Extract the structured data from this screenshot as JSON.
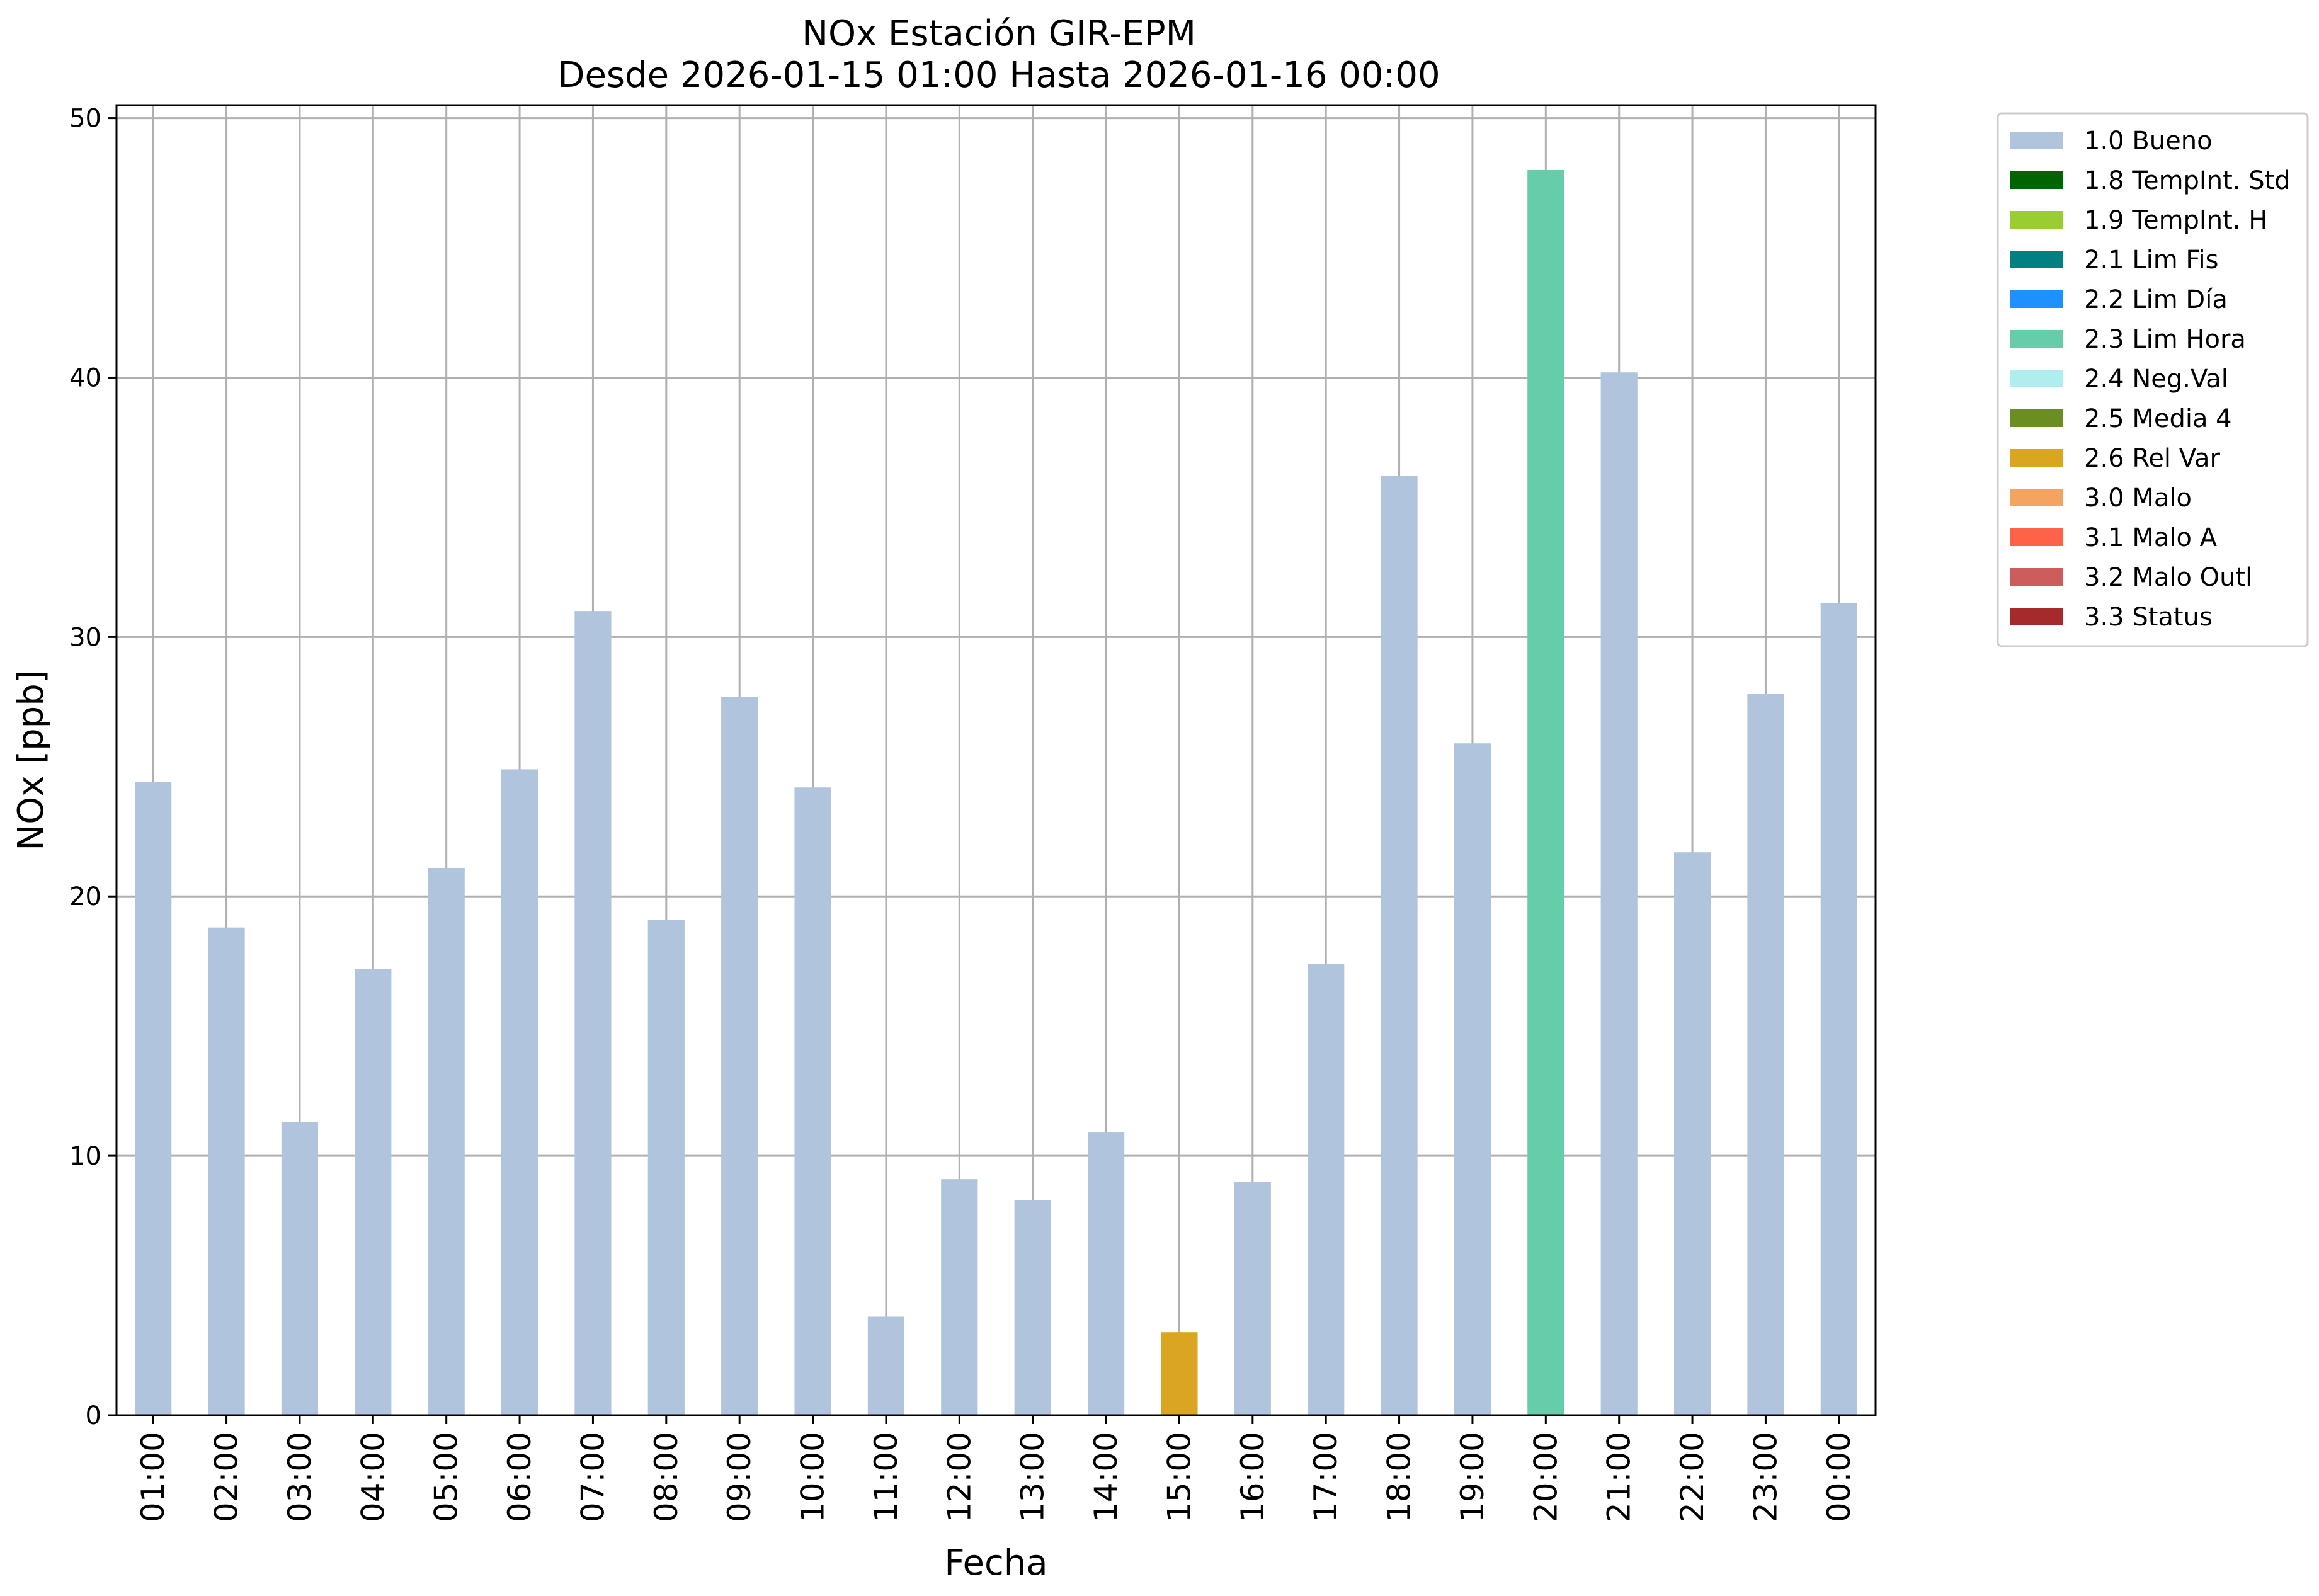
{
  "chart_data": {
    "type": "bar",
    "title": "NOx Estación GIR-EPM",
    "subtitle": "Desde 2026-01-15 01:00 Hasta 2026-01-16 00:00",
    "xlabel": "Fecha",
    "ylabel": "NOx [ppb]",
    "ylim": [
      0,
      50.5
    ],
    "yticks": [
      0,
      10,
      20,
      30,
      40,
      50
    ],
    "grid": true,
    "legend_placement": "outside-upper-right",
    "categories": [
      "01:00",
      "02:00",
      "03:00",
      "04:00",
      "05:00",
      "06:00",
      "07:00",
      "08:00",
      "09:00",
      "10:00",
      "11:00",
      "12:00",
      "13:00",
      "14:00",
      "15:00",
      "16:00",
      "17:00",
      "18:00",
      "19:00",
      "20:00",
      "21:00",
      "22:00",
      "23:00",
      "00:00"
    ],
    "values": [
      24.4,
      18.8,
      11.3,
      17.2,
      21.1,
      24.9,
      31.0,
      19.1,
      27.7,
      24.2,
      3.8,
      9.1,
      8.3,
      10.9,
      3.2,
      9.0,
      17.4,
      36.2,
      25.9,
      48.0,
      40.2,
      21.7,
      27.8,
      31.3
    ],
    "flags": [
      "1.0 Bueno",
      "1.0 Bueno",
      "1.0 Bueno",
      "1.0 Bueno",
      "1.0 Bueno",
      "1.0 Bueno",
      "1.0 Bueno",
      "1.0 Bueno",
      "1.0 Bueno",
      "1.0 Bueno",
      "1.0 Bueno",
      "1.0 Bueno",
      "1.0 Bueno",
      "1.0 Bueno",
      "2.6 Rel Var",
      "1.0 Bueno",
      "1.0 Bueno",
      "1.0 Bueno",
      "1.0 Bueno",
      "2.3 Lim Hora",
      "1.0 Bueno",
      "1.0 Bueno",
      "1.0 Bueno",
      "1.0 Bueno"
    ],
    "legend": [
      {
        "label": "1.0 Bueno",
        "color": "#b0c4de"
      },
      {
        "label": "1.8 TempInt. Std",
        "color": "#006400"
      },
      {
        "label": "1.9 TempInt. H",
        "color": "#9acd32"
      },
      {
        "label": "2.1 Lim Fis",
        "color": "#008080"
      },
      {
        "label": "2.2 Lim Día",
        "color": "#1e90ff"
      },
      {
        "label": "2.3 Lim Hora",
        "color": "#66cdaa"
      },
      {
        "label": "2.4 Neg.Val",
        "color": "#afeeee"
      },
      {
        "label": "2.5 Media 4",
        "color": "#6b8e23"
      },
      {
        "label": "2.6 Rel Var",
        "color": "#daa520"
      },
      {
        "label": "3.0 Malo",
        "color": "#f4a460"
      },
      {
        "label": "3.1 Malo A",
        "color": "#ff6347"
      },
      {
        "label": "3.2 Malo Outl",
        "color": "#cd5c5c"
      },
      {
        "label": "3.3 Status",
        "color": "#a52a2a"
      }
    ]
  }
}
